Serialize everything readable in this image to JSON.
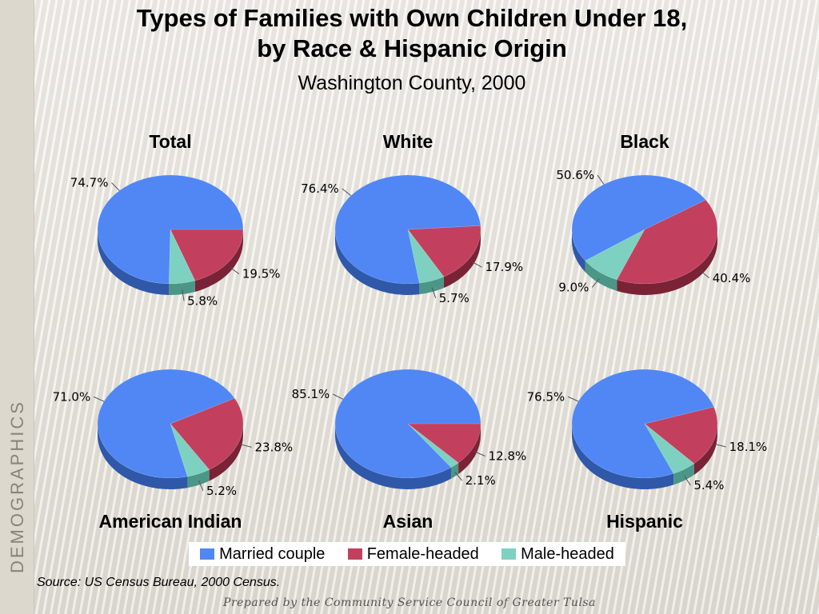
{
  "title_line1": "Types of Families with Own Children Under 18,",
  "title_line2": "by Race & Hispanic Origin",
  "subtitle": "Washington County, 2000",
  "side_label": "DEMOGRAPHICS",
  "source": "Source:  US Census Bureau, 2000 Census.",
  "prepared_by": "Prepared by the Community Service Council of Greater Tulsa",
  "colors": {
    "married_top": "#5087f4",
    "married_side": "#2f58a8",
    "female_top": "#c2405e",
    "female_side": "#7a2236",
    "male_top": "#7ed1c0",
    "male_side": "#4a9687"
  },
  "legend": [
    {
      "label": "Married couple",
      "color": "#5087f4"
    },
    {
      "label": "Female-headed",
      "color": "#c2405e"
    },
    {
      "label": "Male-headed",
      "color": "#7ed1c0"
    }
  ],
  "chart_data": [
    {
      "type": "pie",
      "title": "Total",
      "categories": [
        "Married couple",
        "Female-headed",
        "Male-headed"
      ],
      "values": [
        74.7,
        19.5,
        5.8
      ],
      "labels": [
        "74.7%",
        "19.5%",
        "5.8%"
      ]
    },
    {
      "type": "pie",
      "title": "White",
      "categories": [
        "Married couple",
        "Female-headed",
        "Male-headed"
      ],
      "values": [
        76.4,
        17.9,
        5.7
      ],
      "labels": [
        "76.4%",
        "17.9%",
        "5.7%"
      ]
    },
    {
      "type": "pie",
      "title": "Black",
      "categories": [
        "Married couple",
        "Female-headed",
        "Male-headed"
      ],
      "values": [
        50.6,
        40.4,
        9.0
      ],
      "labels": [
        "50.6%",
        "40.4%",
        "9.0%"
      ]
    },
    {
      "type": "pie",
      "title": "American Indian",
      "categories": [
        "Married couple",
        "Female-headed",
        "Male-headed"
      ],
      "values": [
        71.0,
        23.8,
        5.2
      ],
      "labels": [
        "71.0%",
        "23.8%",
        "5.2%"
      ]
    },
    {
      "type": "pie",
      "title": "Asian",
      "categories": [
        "Married couple",
        "Female-headed",
        "Male-headed"
      ],
      "values": [
        85.1,
        12.8,
        2.1
      ],
      "labels": [
        "85.1%",
        "12.8%",
        "2.1%"
      ]
    },
    {
      "type": "pie",
      "title": "Hispanic",
      "categories": [
        "Married couple",
        "Female-headed",
        "Male-headed"
      ],
      "values": [
        76.5,
        18.1,
        5.4
      ],
      "labels": [
        "76.5%",
        "18.1%",
        "5.4%"
      ]
    }
  ]
}
